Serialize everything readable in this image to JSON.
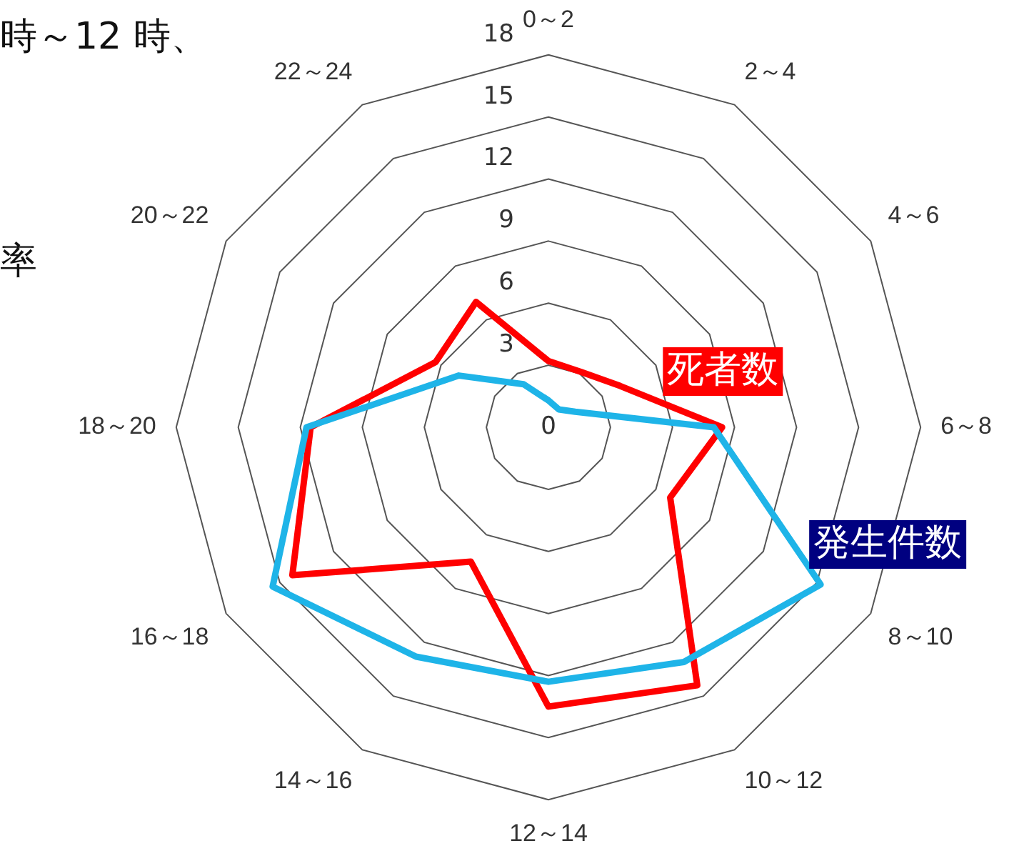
{
  "chart_data": {
    "type": "radar",
    "categories": [
      "0～2",
      "2～4",
      "4～6",
      "6～8",
      "8～10",
      "10～12",
      "12～14",
      "14～16",
      "16～18",
      "18～20",
      "20～22",
      "22～24"
    ],
    "series": [
      {
        "name": "発生件数",
        "color": "#1eb4e8",
        "values": [
          1.3,
          1.0,
          1.5,
          8.0,
          15.2,
          13.1,
          12.3,
          12.8,
          15.4,
          11.7,
          5.0,
          2.4
        ]
      },
      {
        "name": "死者数",
        "color": "#ff0000",
        "values": [
          3.2,
          3.1,
          4.0,
          8.4,
          6.8,
          14.4,
          13.5,
          7.5,
          14.3,
          11.5,
          6.3,
          7.0
        ]
      }
    ],
    "ylim": [
      0,
      18
    ],
    "yticks": [
      0,
      3,
      6,
      9,
      12,
      15,
      18
    ],
    "annotations": [
      "時～12 時、",
      "率"
    ]
  }
}
